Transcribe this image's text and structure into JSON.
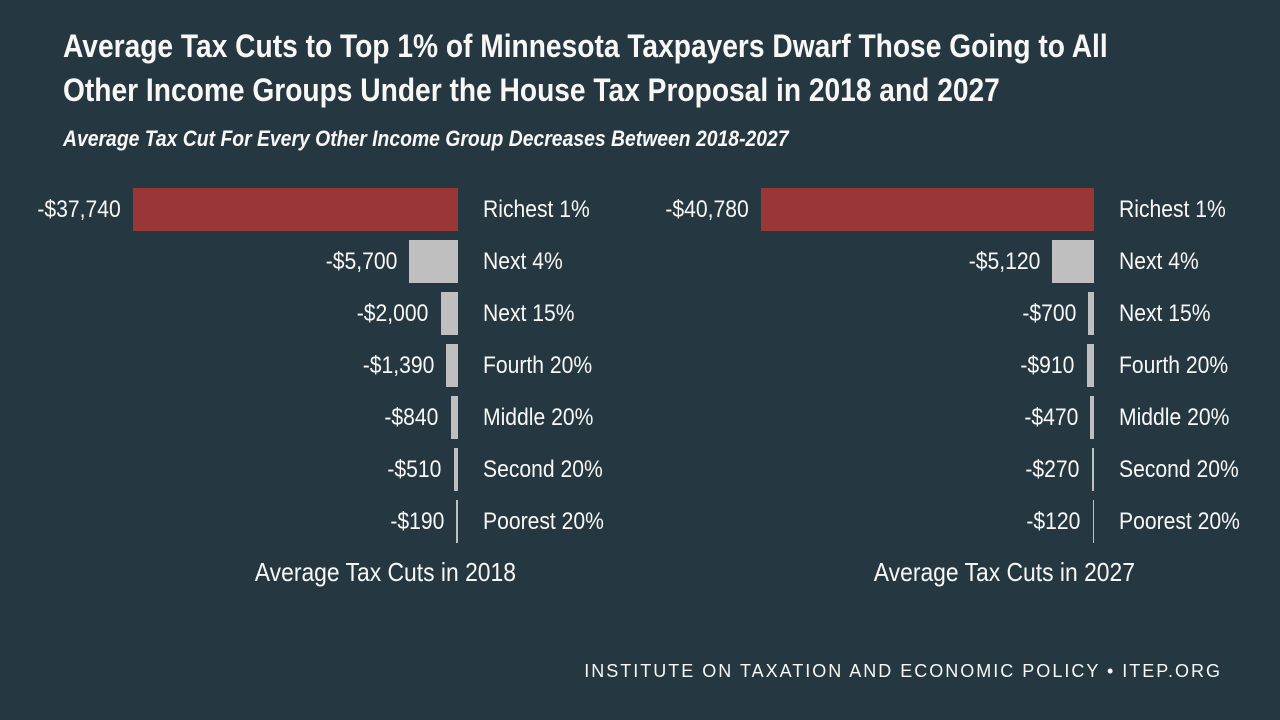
{
  "title": {
    "line1": "Average Tax Cuts to Top 1% of Minnesota Taxpayers Dwarf Those Going to All",
    "line2": "Other Income Groups Under the House Tax Proposal in 2018 and 2027",
    "subtitle": "Average Tax Cut For Every Other Income Group Decreases Between 2018-2027"
  },
  "footer": {
    "text": "INSTITUTE ON TAXATION AND ECONOMIC POLICY • ITEP.ORG"
  },
  "colors": {
    "background": "#253842",
    "bar_highlight": "#993636",
    "bar_default": "#c0bfbf",
    "text": "#f8f7f5"
  },
  "chart_data": [
    {
      "type": "bar",
      "orientation": "horizontal",
      "title": "Average Tax Cuts in 2018",
      "categories": [
        "Richest 1%",
        "Next 4%",
        "Next 15%",
        "Fourth 20%",
        "Middle 20%",
        "Second 20%",
        "Poorest 20%"
      ],
      "values": [
        -37740,
        -5700,
        -2000,
        -1390,
        -840,
        -510,
        -190
      ],
      "value_labels": [
        "-$37,740",
        "-$5,700",
        "-$2,000",
        "-$1,390",
        "-$840",
        "-$510",
        "-$190"
      ],
      "highlight_index": 0,
      "xlim": [
        -37740,
        0
      ],
      "grid": false,
      "legend": "none",
      "value_label_position": "left-of-bar",
      "category_label_position": "right-of-baseline"
    },
    {
      "type": "bar",
      "orientation": "horizontal",
      "title": "Average Tax Cuts in 2027",
      "categories": [
        "Richest 1%",
        "Next 4%",
        "Next 15%",
        "Fourth 20%",
        "Middle 20%",
        "Second 20%",
        "Poorest 20%"
      ],
      "values": [
        -40780,
        -5120,
        -700,
        -910,
        -470,
        -270,
        -120
      ],
      "value_labels": [
        "-$40,780",
        "-$5,120",
        "-$700",
        "-$910",
        "-$470",
        "-$270",
        "-$120"
      ],
      "highlight_index": 0,
      "xlim": [
        -40780,
        0
      ],
      "grid": false,
      "legend": "none",
      "value_label_position": "left-of-bar",
      "category_label_position": "right-of-baseline"
    }
  ]
}
